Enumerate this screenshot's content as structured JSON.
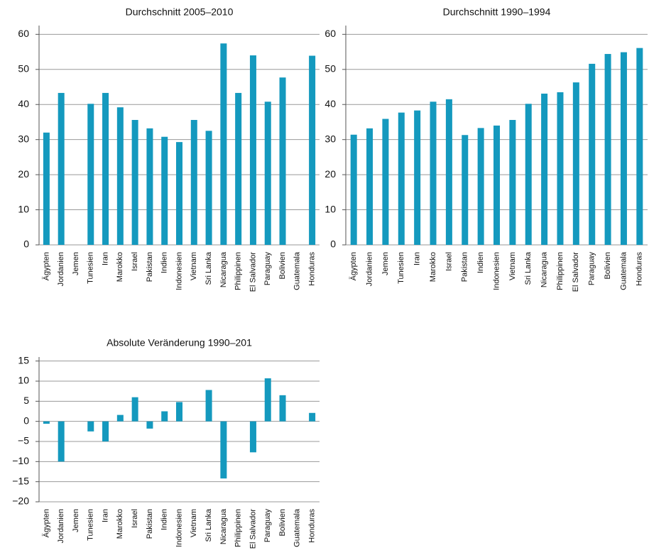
{
  "chart_data": [
    {
      "type": "bar",
      "title": "Durchschnitt 2005–2010",
      "categories": [
        "Ägypten",
        "Jordanien",
        "Jemen",
        "Tunesien",
        "Iran",
        "Marokko",
        "Israel",
        "Pakistan",
        "Indien",
        "Indonesien",
        "Vietnam",
        "Sri Lanka",
        "Nicaragua",
        "Philippinen",
        "El Salvador",
        "Paraguay",
        "Bolivien",
        "Guatemala",
        "Honduras"
      ],
      "values": [
        32,
        43.3,
        null,
        40.2,
        43.3,
        39.2,
        35.6,
        33.2,
        30.8,
        29.3,
        35.6,
        32.5,
        57.4,
        43.3,
        54,
        40.8,
        47.7,
        null,
        53.9
      ],
      "color": "#1499be",
      "ylim": [
        0,
        62.5
      ],
      "yticks": [
        0,
        10,
        20,
        30,
        40,
        50,
        60
      ],
      "grid": true
    },
    {
      "type": "bar",
      "title": "Durchschnitt 1990–1994",
      "categories": [
        "Ägypten",
        "Jordanien",
        "Jemen",
        "Tunesien",
        "Iran",
        "Marokko",
        "Israel",
        "Pakistan",
        "Indien",
        "Indonesien",
        "Vietnam",
        "Sri Lanka",
        "Nicaragua",
        "Philippinen",
        "El Salvador",
        "Paraguay",
        "Bolivien",
        "Guatemala",
        "Honduras"
      ],
      "values": [
        31.4,
        33.2,
        35.9,
        37.7,
        38.3,
        40.8,
        41.5,
        31.3,
        33.3,
        34.0,
        35.6,
        40.2,
        43.1,
        43.5,
        46.3,
        51.6,
        54.4,
        54.9,
        56.1
      ],
      "color": "#1499be",
      "ylim": [
        0,
        62.5
      ],
      "yticks": [
        0,
        10,
        20,
        30,
        40,
        50,
        60
      ],
      "grid": true
    },
    {
      "type": "bar",
      "title": "Absolute Veränderung 1990–201",
      "categories": [
        "Ägypten",
        "Jordanien",
        "Jemen",
        "Tunesien",
        "Iran",
        "Marokko",
        "Israel",
        "Pakistan",
        "Indien",
        "Indonesien",
        "Vietnam",
        "Sri Lanka",
        "Nicaragua",
        "Philippinen",
        "El Salvador",
        "Paraguay",
        "Bolivien",
        "Guatemala",
        "Honduras"
      ],
      "values": [
        -0.6,
        -10,
        null,
        -2.5,
        -5,
        1.6,
        6,
        -1.8,
        2.5,
        4.8,
        null,
        7.8,
        -14.2,
        null,
        -7.7,
        10.7,
        6.5,
        null,
        2.1
      ],
      "color": "#1499be",
      "ylim": [
        -20,
        16
      ],
      "yticks": [
        {
          "value": -20,
          "label": "−20"
        },
        {
          "value": -15,
          "label": "−15"
        },
        {
          "value": -10,
          "label": "−10"
        },
        {
          "value": -5,
          "label": "−5"
        },
        0,
        5,
        10,
        15
      ],
      "grid": true
    }
  ]
}
